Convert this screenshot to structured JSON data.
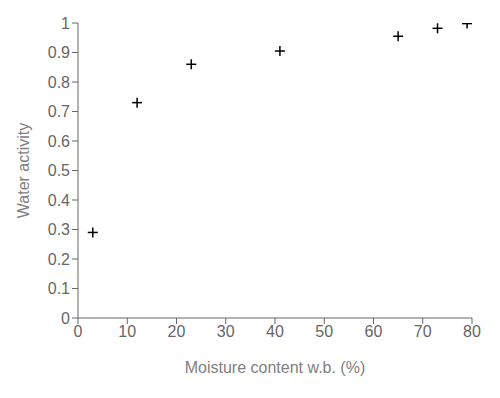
{
  "chart_data": {
    "type": "scatter",
    "x": [
      3,
      12,
      23,
      41,
      65,
      73,
      79
    ],
    "values": [
      0.29,
      0.73,
      0.86,
      0.905,
      0.955,
      0.982,
      0.998
    ],
    "xlabel": "Moisture content w.b. (%)",
    "ylabel": "Water activity",
    "xlim": [
      0,
      80
    ],
    "ylim": [
      0,
      1
    ],
    "xticks": [
      0,
      10,
      20,
      30,
      40,
      50,
      60,
      70,
      80
    ],
    "yticks": [
      0,
      0.1,
      0.2,
      0.3,
      0.4,
      0.5,
      0.6,
      0.7,
      0.8,
      0.9,
      1
    ],
    "color": "#000000",
    "marker": "+",
    "grid": false
  }
}
